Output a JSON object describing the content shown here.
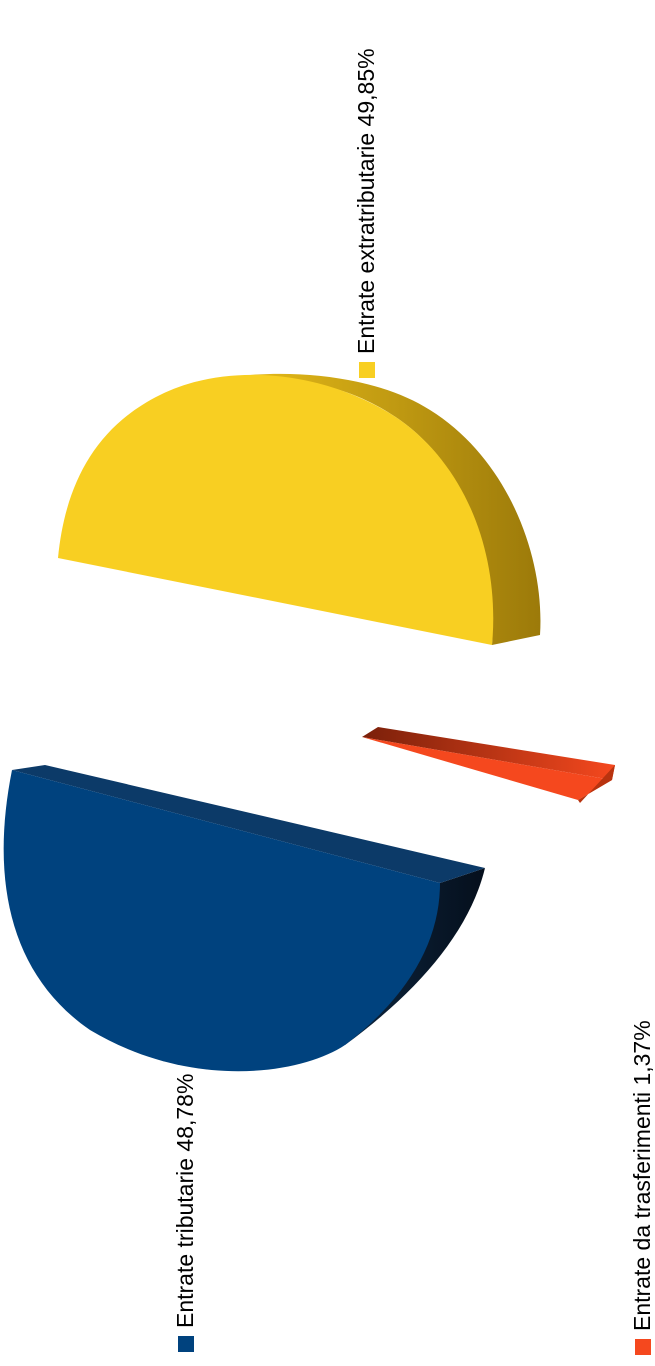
{
  "chart_data": {
    "type": "pie",
    "style": "3d-exploded-rotated",
    "categories": [
      "Entrate tributarie",
      "Entrate extratributarie",
      "Entrate da trasferimenti"
    ],
    "values": [
      48.78,
      49.85,
      1.37
    ],
    "labels": [
      "Entrate tributarie 48,78%",
      "Entrate extratributarie 49,85%",
      "Entrate da trasferimenti 1,37%"
    ],
    "colors": [
      "#00427e",
      "#f8cf22",
      "#f5481e"
    ],
    "shade_colors": [
      "#0a2540",
      "#c49a10",
      "#9b2a0c"
    ],
    "legend": "none"
  }
}
